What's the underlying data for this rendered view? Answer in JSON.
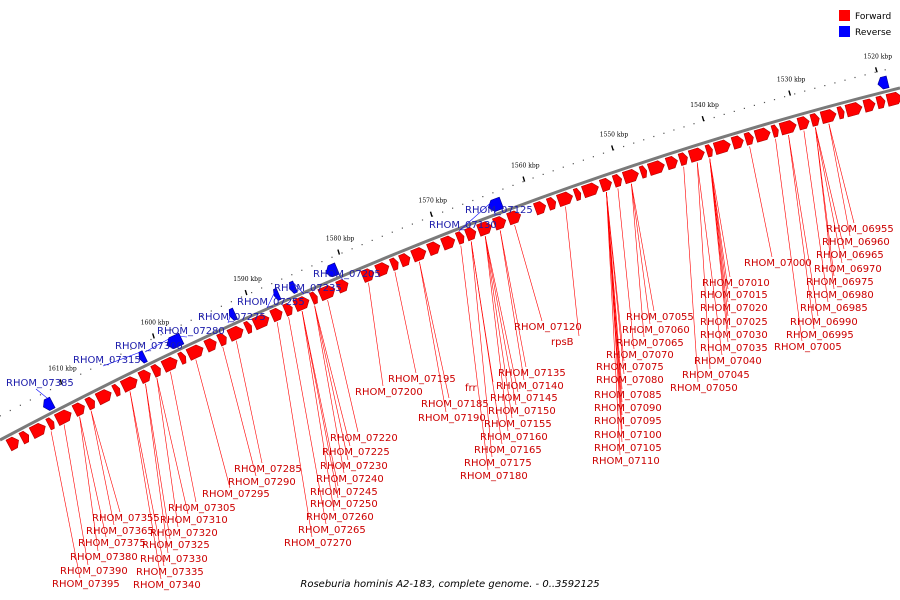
{
  "caption": "Roseburia hominis A2-183, complete genome. - 0..3592125",
  "legend": [
    {
      "label": "Forward",
      "color": "#ff0000"
    },
    {
      "label": "Reverse",
      "color": "#0000ff"
    }
  ],
  "colors": {
    "forward": "#ff0000",
    "reverse": "#0000ff",
    "backbone": "#7a7a7a"
  },
  "kbp_labels": [
    "1520 kbp",
    "1530 kbp",
    "1540 kbp",
    "1550 kbp",
    "1560 kbp",
    "1570 kbp",
    "1580 kbp",
    "1590 kbp",
    "1600 kbp",
    "1610 kbp"
  ],
  "forward_labels": [
    "RHOM_06955",
    "RHOM_06960",
    "RHOM_06965",
    "RHOM_06970",
    "RHOM_06975",
    "RHOM_06980",
    "RHOM_06985",
    "RHOM_06990",
    "RHOM_06995",
    "RHOM_07000",
    "RHOM_07005",
    "RHOM_07010",
    "RHOM_07015",
    "RHOM_07020",
    "RHOM_07025",
    "RHOM_07030",
    "RHOM_07035",
    "RHOM_07040",
    "RHOM_07045",
    "RHOM_07050",
    "RHOM_07055",
    "RHOM_07060",
    "RHOM_07065",
    "RHOM_07070",
    "RHOM_07075",
    "RHOM_07080",
    "RHOM_07085",
    "RHOM_07090",
    "RHOM_07095",
    "RHOM_07100",
    "RHOM_07105",
    "RHOM_07110",
    "RHOM_07120",
    "rpsB",
    "RHOM_07135",
    "RHOM_07140",
    "RHOM_07145",
    "RHOM_07150",
    "RHOM_07155",
    "RHOM_07160",
    "RHOM_07165",
    "RHOM_07175",
    "RHOM_07180",
    "frr",
    "RHOM_07185",
    "RHOM_07190",
    "RHOM_07195",
    "RHOM_07200",
    "RHOM_07220",
    "RHOM_07225",
    "RHOM_07230",
    "RHOM_07240",
    "RHOM_07245",
    "RHOM_07250",
    "RHOM_07260",
    "RHOM_07265",
    "RHOM_07270",
    "RHOM_07285",
    "RHOM_07290",
    "RHOM_07295",
    "RHOM_07305",
    "RHOM_07310",
    "RHOM_07320",
    "RHOM_07325",
    "RHOM_07330",
    "RHOM_07335",
    "RHOM_07340",
    "RHOM_07355",
    "RHOM_07365",
    "RHOM_07375",
    "RHOM_07380",
    "RHOM_07390",
    "RHOM_07395"
  ],
  "reverse_labels": [
    "RHOM_07125",
    "RHOM_07130",
    "RHOM_07205",
    "RHOM_07235",
    "RHOM_07255",
    "RHOM_07275",
    "RHOM_07280",
    "RHOM_07300",
    "RHOM_07315",
    "RHOM_07385"
  ]
}
